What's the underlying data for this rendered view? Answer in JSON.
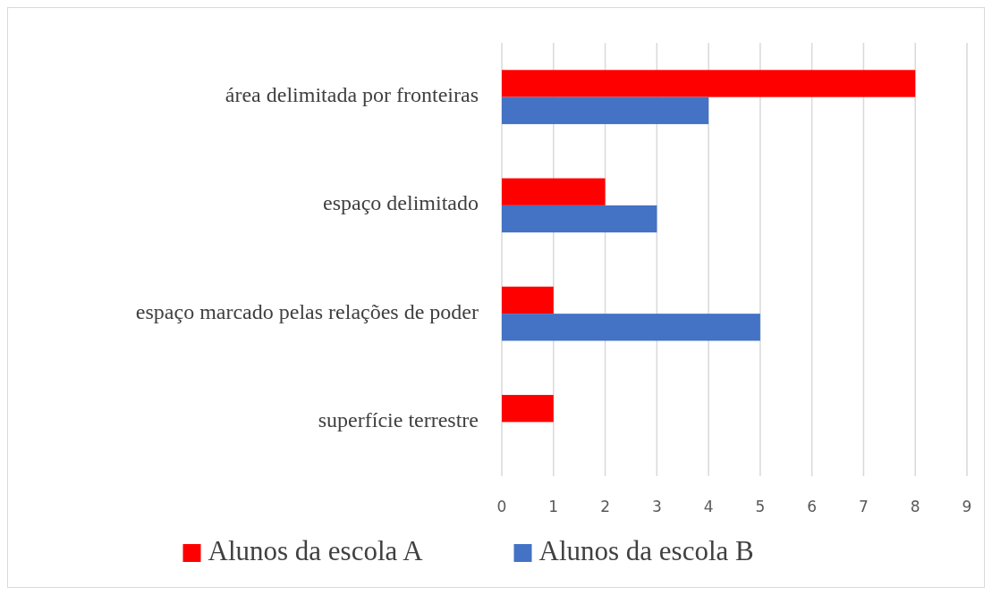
{
  "chart_data": {
    "type": "bar",
    "orientation": "horizontal",
    "categories": [
      "área delimitada por fronteiras",
      "espaço delimitado",
      "espaço marcado pelas relações de poder",
      "superfície terrestre"
    ],
    "series": [
      {
        "name": "Alunos da escola A",
        "color": "#ff0000",
        "values": [
          8,
          2,
          1,
          1
        ]
      },
      {
        "name": "Alunos da escola B",
        "color": "#4472c4",
        "values": [
          4,
          3,
          5,
          0
        ]
      }
    ],
    "xlim": [
      0,
      9
    ],
    "xticks": [
      0,
      1,
      2,
      3,
      4,
      5,
      6,
      7,
      8,
      9
    ],
    "grid": "x",
    "legend": "bottom"
  }
}
